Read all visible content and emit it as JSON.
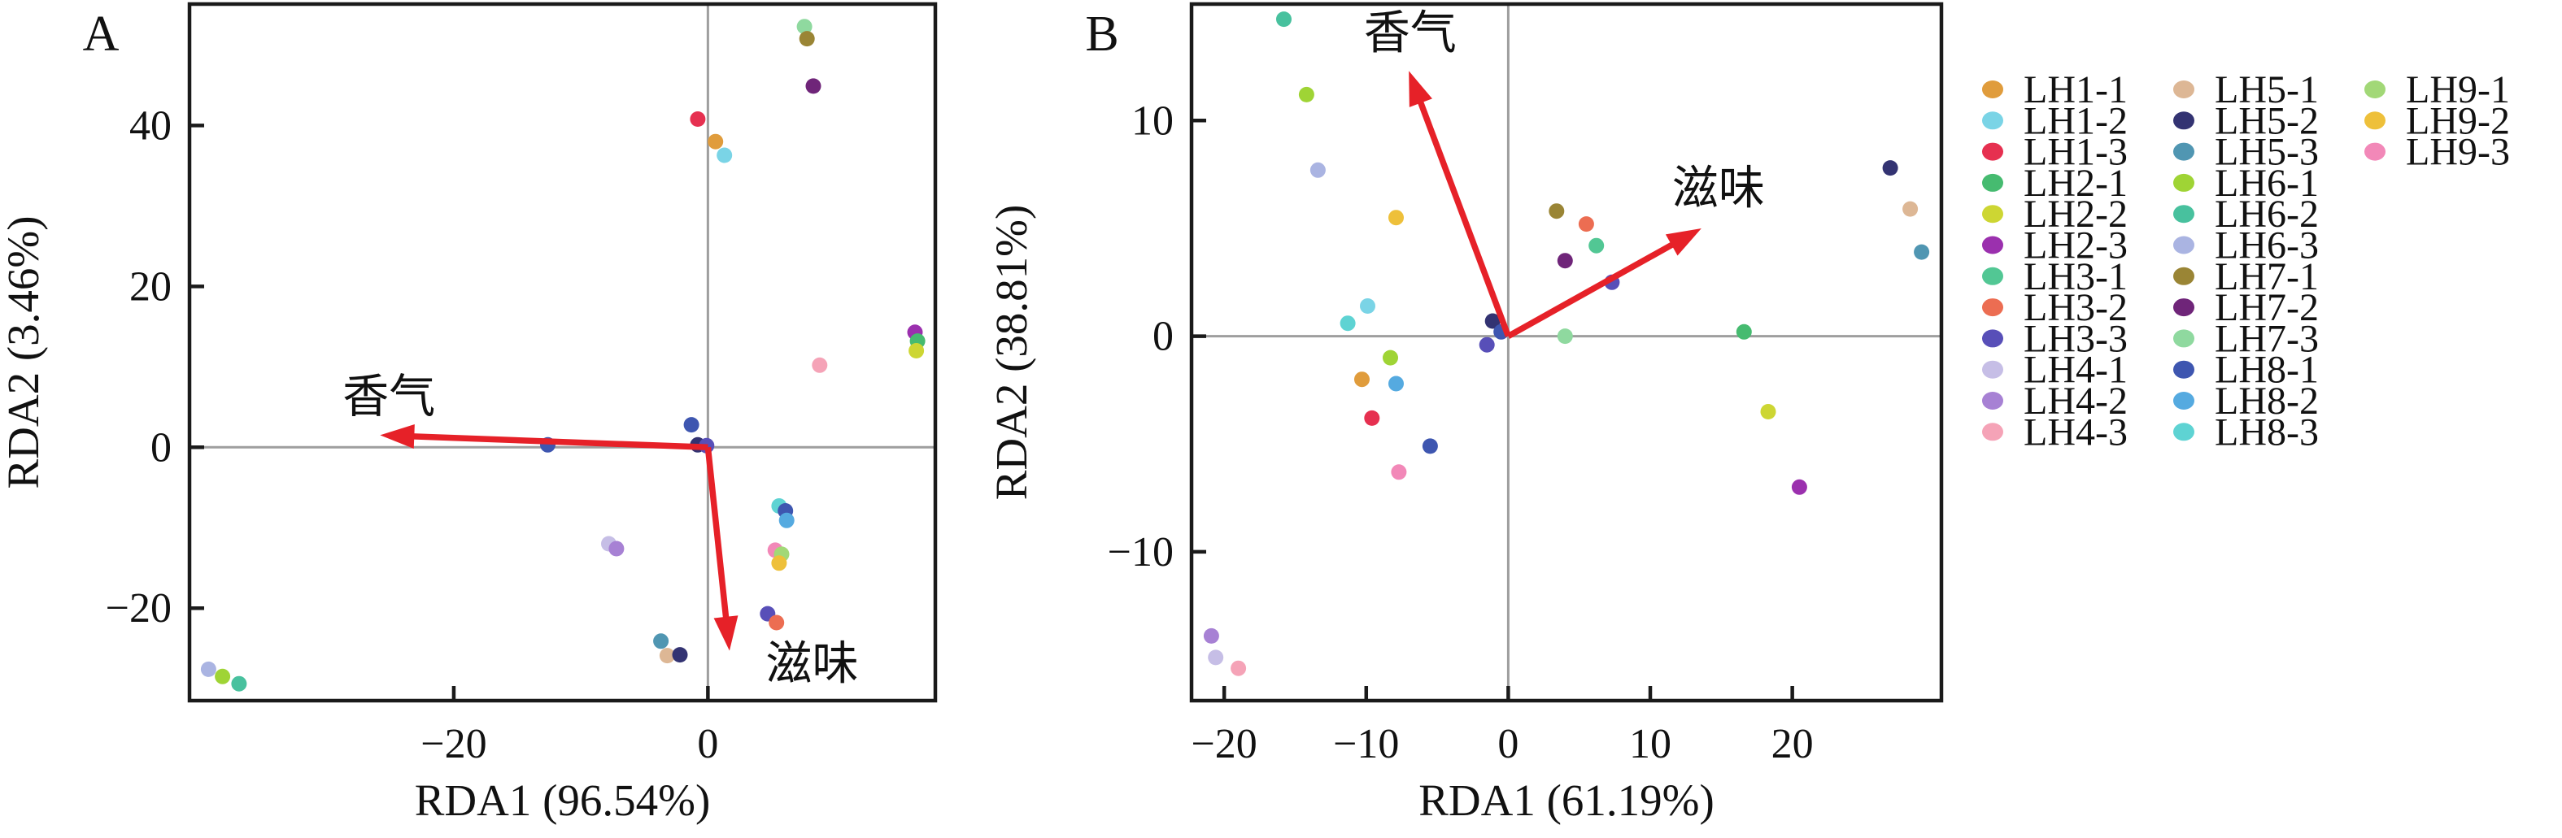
{
  "figure": {
    "background": "#ffffff",
    "style": {
      "arrow_color": "#E62128",
      "axis_color": "#1a1a1a",
      "grid_color": "#9E9E9E",
      "text_color": "#111111"
    }
  },
  "chart_data": [
    {
      "id": "A",
      "type": "scatter",
      "panel_label": "A",
      "xlabel": "RDA1 (96.54%)",
      "ylabel": "RDA2 (3.46%)",
      "xlim": [
        -40.8,
        17.9
      ],
      "ylim": [
        -31.5,
        55.1
      ],
      "xticks": [
        -20,
        0
      ],
      "yticks": [
        40,
        20,
        0,
        -20
      ],
      "grid": "zero-cross-lines",
      "legend_position": "outside-right",
      "vectors": [
        {
          "label": "香气",
          "x": -25.8,
          "y": 1.5,
          "label_x": -25.1,
          "label_y": 6.4
        },
        {
          "label": "滋味",
          "x": 1.7,
          "y": -25.3,
          "label_x": 8.2,
          "label_y": -26.8
        }
      ],
      "points": [
        {
          "x": 7.6,
          "y": 52.3,
          "color": "#8FD99F"
        },
        {
          "x": 7.8,
          "y": 50.8,
          "color": "#9A8535"
        },
        {
          "x": 8.3,
          "y": 44.9,
          "color": "#6F2579"
        },
        {
          "x": -0.8,
          "y": 40.8,
          "color": "#E63050"
        },
        {
          "x": 0.6,
          "y": 38.0,
          "color": "#E09C3C"
        },
        {
          "x": 1.3,
          "y": 36.3,
          "color": "#7AD4E6"
        },
        {
          "x": 16.3,
          "y": 14.3,
          "color": "#9B30AE"
        },
        {
          "x": 16.5,
          "y": 13.2,
          "color": "#46BB70"
        },
        {
          "x": 16.4,
          "y": 12.0,
          "color": "#CDD633"
        },
        {
          "x": 8.8,
          "y": 10.2,
          "color": "#F5A3B7"
        },
        {
          "x": -1.3,
          "y": 2.8,
          "color": "#3E56B0"
        },
        {
          "x": -0.8,
          "y": 0.3,
          "color": "#333372"
        },
        {
          "x": -0.1,
          "y": 0.2,
          "color": "#584FB8"
        },
        {
          "x": -12.6,
          "y": 0.3,
          "color": "#3E56B0"
        },
        {
          "x": 5.6,
          "y": -7.3,
          "color": "#5ED3D3"
        },
        {
          "x": 6.1,
          "y": -7.9,
          "color": "#3E56B0"
        },
        {
          "x": 6.2,
          "y": -9.1,
          "color": "#55AAE0"
        },
        {
          "x": 5.3,
          "y": -12.8,
          "color": "#F288B8"
        },
        {
          "x": 5.8,
          "y": -13.3,
          "color": "#A2D877"
        },
        {
          "x": 5.6,
          "y": -14.4,
          "color": "#EEC03A"
        },
        {
          "x": 4.7,
          "y": -20.7,
          "color": "#584FB8"
        },
        {
          "x": 5.4,
          "y": -21.8,
          "color": "#EC6D52"
        },
        {
          "x": -7.8,
          "y": -12.0,
          "color": "#C6BEE6"
        },
        {
          "x": -7.2,
          "y": -12.6,
          "color": "#A781D4"
        },
        {
          "x": -3.7,
          "y": -24.1,
          "color": "#5096B2"
        },
        {
          "x": -3.2,
          "y": -25.9,
          "color": "#DDB795"
        },
        {
          "x": -2.2,
          "y": -25.8,
          "color": "#333372"
        },
        {
          "x": -39.3,
          "y": -27.6,
          "color": "#AAB4E2"
        },
        {
          "x": -38.2,
          "y": -28.5,
          "color": "#9FD435"
        },
        {
          "x": -36.9,
          "y": -29.4,
          "color": "#48C19E"
        }
      ]
    },
    {
      "id": "B",
      "type": "scatter",
      "panel_label": "B",
      "xlabel": "RDA1 (61.19%)",
      "ylabel": "RDA2 (38.81%)",
      "xlim": [
        -22.3,
        30.5
      ],
      "ylim": [
        -16.9,
        15.4
      ],
      "xticks": [
        -20,
        -10,
        0,
        10,
        20
      ],
      "yticks": [
        10,
        0,
        -10
      ],
      "grid": "zero-cross-lines",
      "legend_position": "outside-right",
      "vectors": [
        {
          "label": "香气",
          "x": -7.0,
          "y": 12.3,
          "label_x": -6.9,
          "label_y": 14.1
        },
        {
          "label": "滋味",
          "x": 13.6,
          "y": 5.0,
          "label_x": 14.8,
          "label_y": 6.9
        }
      ],
      "points": [
        {
          "x": -15.8,
          "y": 14.7,
          "color": "#48C19E"
        },
        {
          "x": -14.2,
          "y": 11.2,
          "color": "#9FD435"
        },
        {
          "x": -13.4,
          "y": 7.7,
          "color": "#AAB4E2"
        },
        {
          "x": -7.9,
          "y": 5.5,
          "color": "#EEC03A"
        },
        {
          "x": 3.4,
          "y": 5.8,
          "color": "#9A8535"
        },
        {
          "x": 5.5,
          "y": 5.2,
          "color": "#EC6D52"
        },
        {
          "x": 6.2,
          "y": 4.2,
          "color": "#52C794"
        },
        {
          "x": 4.0,
          "y": 3.5,
          "color": "#6F2579"
        },
        {
          "x": 7.3,
          "y": 2.5,
          "color": "#584FB8"
        },
        {
          "x": -9.9,
          "y": 1.4,
          "color": "#7AD4E6"
        },
        {
          "x": -11.3,
          "y": 0.6,
          "color": "#5ED3D3"
        },
        {
          "x": -1.1,
          "y": 0.7,
          "color": "#333372"
        },
        {
          "x": -0.5,
          "y": 0.2,
          "color": "#3E56B0"
        },
        {
          "x": -1.5,
          "y": -0.4,
          "color": "#584FB8"
        },
        {
          "x": 4.0,
          "y": 0.0,
          "color": "#8FD99F"
        },
        {
          "x": -8.3,
          "y": -1.0,
          "color": "#9FD435"
        },
        {
          "x": -10.3,
          "y": -2.0,
          "color": "#E09C3C"
        },
        {
          "x": -7.9,
          "y": -2.2,
          "color": "#55AAE0"
        },
        {
          "x": -9.6,
          "y": -3.8,
          "color": "#E63050"
        },
        {
          "x": -5.5,
          "y": -5.1,
          "color": "#3E56B0"
        },
        {
          "x": -7.7,
          "y": -6.3,
          "color": "#F288B8"
        },
        {
          "x": 16.6,
          "y": 0.2,
          "color": "#46BB70"
        },
        {
          "x": 18.3,
          "y": -3.5,
          "color": "#CDD633"
        },
        {
          "x": 20.5,
          "y": -7.0,
          "color": "#9B30AE"
        },
        {
          "x": 26.9,
          "y": 7.8,
          "color": "#333372"
        },
        {
          "x": 28.3,
          "y": 5.9,
          "color": "#DDB795"
        },
        {
          "x": 29.1,
          "y": 3.9,
          "color": "#5096B2"
        },
        {
          "x": -20.9,
          "y": -13.9,
          "color": "#A781D4"
        },
        {
          "x": -20.6,
          "y": -14.9,
          "color": "#C6BEE6"
        },
        {
          "x": -19.0,
          "y": -15.4,
          "color": "#F5A3B7"
        }
      ]
    }
  ],
  "legend": {
    "columns": [
      [
        {
          "name": "LH1-1",
          "color": "#E09C3C"
        },
        {
          "name": "LH1-2",
          "color": "#7AD4E6"
        },
        {
          "name": "LH1-3",
          "color": "#E63050"
        },
        {
          "name": "LH2-1",
          "color": "#46BB70"
        },
        {
          "name": "LH2-2",
          "color": "#CDD633"
        },
        {
          "name": "LH2-3",
          "color": "#9B30AE"
        },
        {
          "name": "LH3-1",
          "color": "#52C794"
        },
        {
          "name": "LH3-2",
          "color": "#EC6D52"
        },
        {
          "name": "LH3-3",
          "color": "#584FB8"
        },
        {
          "name": "LH4-1",
          "color": "#C6BEE6"
        },
        {
          "name": "LH4-2",
          "color": "#A781D4"
        },
        {
          "name": "LH4-3",
          "color": "#F5A3B7"
        }
      ],
      [
        {
          "name": "LH5-1",
          "color": "#DDB795"
        },
        {
          "name": "LH5-2",
          "color": "#333372"
        },
        {
          "name": "LH5-3",
          "color": "#5096B2"
        },
        {
          "name": "LH6-1",
          "color": "#9FD435"
        },
        {
          "name": "LH6-2",
          "color": "#48C19E"
        },
        {
          "name": "LH6-3",
          "color": "#AAB4E2"
        },
        {
          "name": "LH7-1",
          "color": "#9A8535"
        },
        {
          "name": "LH7-2",
          "color": "#6F2579"
        },
        {
          "name": "LH7-3",
          "color": "#8FD99F"
        },
        {
          "name": "LH8-1",
          "color": "#3E56B0"
        },
        {
          "name": "LH8-2",
          "color": "#55AAE0"
        },
        {
          "name": "LH8-3",
          "color": "#5ED3D3"
        }
      ],
      [
        {
          "name": "LH9-1",
          "color": "#A2D877"
        },
        {
          "name": "LH9-2",
          "color": "#EEC03A"
        },
        {
          "name": "LH9-3",
          "color": "#F288B8"
        }
      ]
    ]
  }
}
